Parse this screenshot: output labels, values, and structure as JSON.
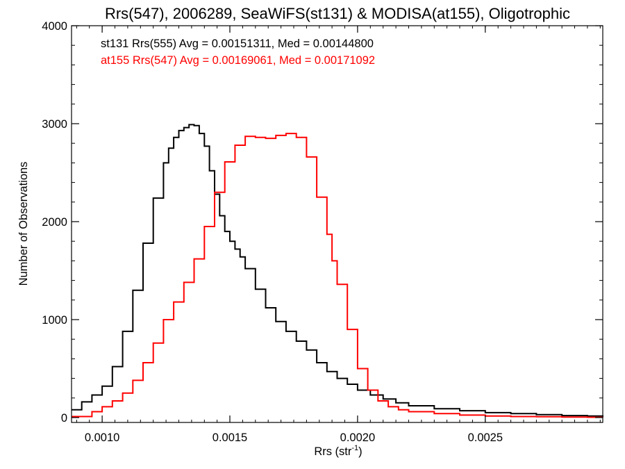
{
  "chart_data": {
    "type": "line",
    "title": "Rrs(547), 2006289, SeaWiFS(st131) & MODISA(at155), Oligotrophic",
    "xlabel_base": "Rrs (str",
    "xlabel_exp": "-1",
    "xlabel_close": ")",
    "ylabel": "Number of Observations",
    "xlim": [
      0.00088,
      0.00296
    ],
    "ylim": [
      -50,
      4000
    ],
    "xticks": [
      0.001,
      0.0015,
      0.002,
      0.0025
    ],
    "xtick_labels": [
      "0.0010",
      "0.0015",
      "0.0020",
      "0.0025"
    ],
    "yticks": [
      0,
      1000,
      2000,
      3000,
      4000
    ],
    "ytick_labels": [
      "0",
      "1000",
      "2000",
      "3000",
      "4000"
    ],
    "grid": false,
    "legend_placement": "top-left",
    "series": [
      {
        "name": "st131 Rrs(555) Avg = 0.00151311, Med = 0.00144800",
        "color": "#000000",
        "x": [
          0.00088,
          0.00092,
          0.00096,
          0.001,
          0.00104,
          0.00108,
          0.00112,
          0.00116,
          0.0012,
          0.00124,
          0.00126,
          0.00128,
          0.0013,
          0.00132,
          0.00134,
          0.00136,
          0.00138,
          0.0014,
          0.00142,
          0.00144,
          0.00146,
          0.00148,
          0.0015,
          0.00152,
          0.00154,
          0.00156,
          0.0016,
          0.00164,
          0.00168,
          0.00172,
          0.00176,
          0.0018,
          0.00184,
          0.00188,
          0.00192,
          0.00196,
          0.002,
          0.00205,
          0.0021,
          0.00215,
          0.0022,
          0.0023,
          0.0024,
          0.0025,
          0.0026,
          0.0027,
          0.0028,
          0.0029,
          0.00296
        ],
        "y": [
          80,
          160,
          230,
          320,
          520,
          880,
          1300,
          1780,
          2240,
          2600,
          2750,
          2860,
          2930,
          2960,
          2990,
          2980,
          2900,
          2770,
          2520,
          2280,
          2060,
          1900,
          1800,
          1720,
          1640,
          1520,
          1310,
          1120,
          980,
          880,
          780,
          690,
          560,
          470,
          400,
          340,
          280,
          230,
          190,
          150,
          120,
          90,
          70,
          50,
          40,
          30,
          20,
          15,
          10
        ]
      },
      {
        "name": "at155 Rrs(547) Avg = 0.00169061, Med = 0.00171092",
        "color": "#ff0000",
        "x": [
          0.00088,
          0.00096,
          0.001,
          0.00104,
          0.00108,
          0.00112,
          0.00116,
          0.0012,
          0.00124,
          0.00128,
          0.00132,
          0.00136,
          0.0014,
          0.00144,
          0.00148,
          0.00152,
          0.00156,
          0.0016,
          0.00164,
          0.00168,
          0.00172,
          0.00176,
          0.0018,
          0.00184,
          0.00188,
          0.0019,
          0.00192,
          0.00196,
          0.002,
          0.00204,
          0.00208,
          0.00212,
          0.00216,
          0.0022,
          0.0023,
          0.0024,
          0.0025,
          0.0026,
          0.0027,
          0.0028,
          0.0029,
          0.00296
        ],
        "y": [
          10,
          60,
          110,
          170,
          250,
          380,
          560,
          760,
          1000,
          1180,
          1380,
          1620,
          1950,
          2300,
          2610,
          2780,
          2870,
          2860,
          2850,
          2880,
          2900,
          2860,
          2660,
          2250,
          1870,
          1600,
          1360,
          900,
          500,
          280,
          170,
          110,
          80,
          60,
          40,
          25,
          15,
          10,
          8,
          5,
          3,
          2
        ]
      }
    ]
  }
}
